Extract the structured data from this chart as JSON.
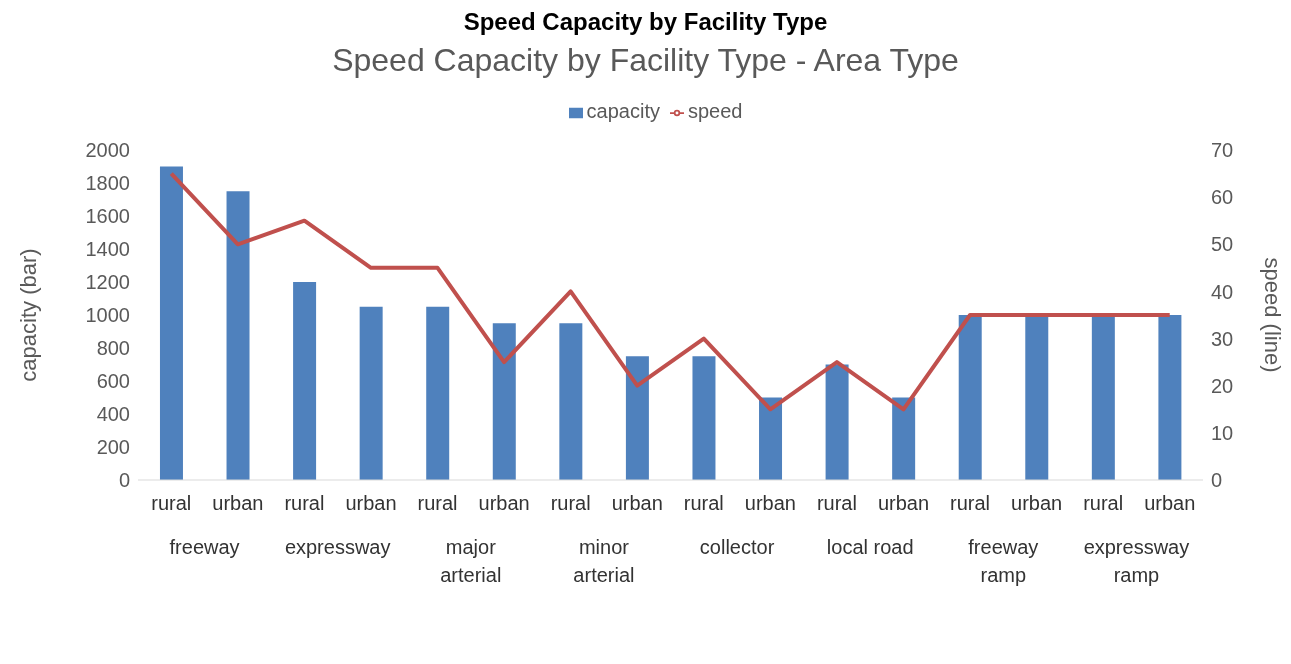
{
  "chart_data": {
    "type": "bar",
    "subtitle": "Speed Capacity by Facility Type",
    "title": "Speed Capacity by Facility Type - Area Type",
    "ylabel": "capacity (bar)",
    "y2label": "speed (line)",
    "categories": [
      "rural",
      "urban",
      "rural",
      "urban",
      "rural",
      "urban",
      "rural",
      "urban",
      "rural",
      "urban",
      "rural",
      "urban",
      "rural",
      "urban",
      "rural",
      "urban"
    ],
    "annotations": [
      "freeway",
      "expressway",
      "major arterial",
      "minor arterial",
      "collector",
      "local road",
      "freeway ramp",
      "expressway ramp"
    ],
    "series": [
      {
        "name": "capacity",
        "color": "#4f81bd",
        "values": [
          1900,
          1750,
          1200,
          1050,
          1050,
          950,
          950,
          750,
          750,
          500,
          700,
          500,
          1000,
          1000,
          1000,
          1000
        ]
      },
      {
        "name": "speed",
        "type": "line",
        "axis": "y2",
        "color": "#c0504d",
        "values": [
          65,
          50,
          55,
          45,
          45,
          25,
          40,
          20,
          30,
          15,
          25,
          15,
          35,
          35,
          35,
          35
        ]
      }
    ],
    "ylim": [
      0,
      2000
    ],
    "yticks": [
      0,
      200,
      400,
      600,
      800,
      1000,
      1200,
      1400,
      1600,
      1800,
      2000
    ],
    "y2lim": [
      0,
      70
    ],
    "y2ticks": [
      0,
      10,
      20,
      30,
      40,
      50,
      60,
      70
    ],
    "legend": "top",
    "grid": false,
    "marker": "none",
    "line_style": "solid"
  }
}
